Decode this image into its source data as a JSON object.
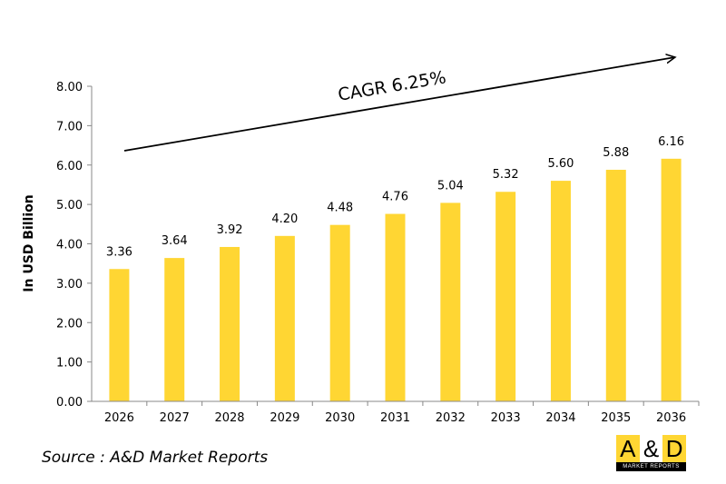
{
  "chart_data": {
    "type": "bar",
    "categories": [
      "2026",
      "2027",
      "2028",
      "2029",
      "2030",
      "2031",
      "2032",
      "2033",
      "2034",
      "2035",
      "2036"
    ],
    "values": [
      3.36,
      3.64,
      3.92,
      4.2,
      4.48,
      4.76,
      5.04,
      5.32,
      5.6,
      5.88,
      6.16
    ],
    "value_labels": [
      "3.36",
      "3.64",
      "3.92",
      "4.20",
      "4.48",
      "4.76",
      "5.04",
      "5.32",
      "5.60",
      "5.88",
      "6.16"
    ],
    "ylabel": "In USD Billion",
    "xlabel": "",
    "ylim": [
      0,
      8
    ],
    "yticks": [
      "0.00",
      "1.00",
      "2.00",
      "3.00",
      "4.00",
      "5.00",
      "6.00",
      "7.00",
      "8.00"
    ],
    "grid": false,
    "bar_color": "#FFD633",
    "annotation": "CAGR 6.25%"
  },
  "source": "Source : A&D Market Reports",
  "logo": {
    "left": "A",
    "mid": "&",
    "right": "D",
    "tagline": "MARKET REPORTS",
    "colors": {
      "yellow": "#FFD633",
      "black": "#000000"
    }
  }
}
